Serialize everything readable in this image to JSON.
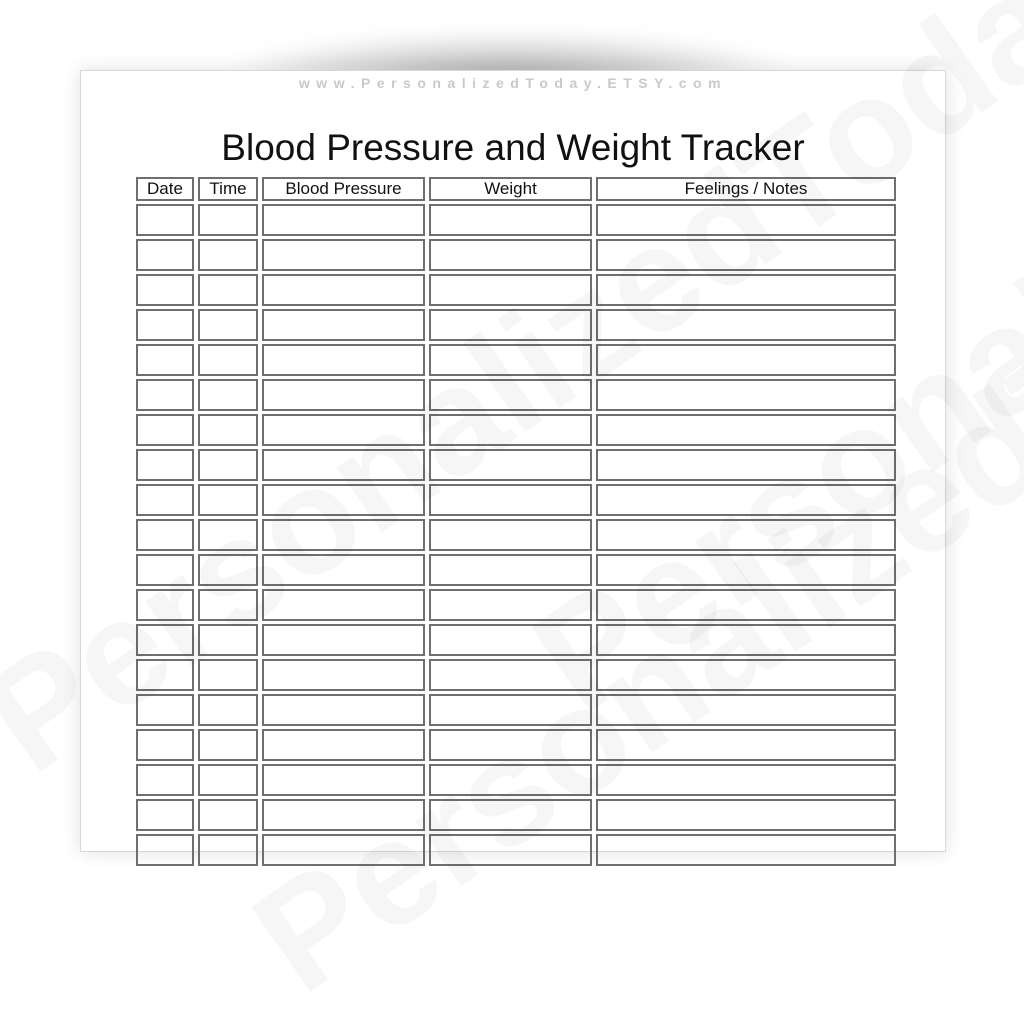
{
  "watermark": "PersonalizedToday",
  "header": {
    "url": "www.PersonalizedToday.ETSY.com"
  },
  "document": {
    "title": "Blood Pressure and Weight Tracker",
    "columns": [
      "Date",
      "Time",
      "Blood Pressure",
      "Weight",
      "Feelings / Notes"
    ],
    "visible_rows": 18
  }
}
